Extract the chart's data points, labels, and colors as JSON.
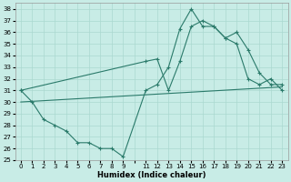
{
  "xlabel": "Humidex (Indice chaleur)",
  "background_color": "#c8ece6",
  "grid_color": "#aad8d0",
  "line_color": "#2a7a6a",
  "ylim": [
    25,
    38.5
  ],
  "xlim": [
    -0.5,
    23.5
  ],
  "yticks": [
    25,
    26,
    27,
    28,
    29,
    30,
    31,
    32,
    33,
    34,
    35,
    36,
    37,
    38
  ],
  "xtick_labels": [
    "0",
    "1",
    "2",
    "3",
    "4",
    "5",
    "6",
    "7",
    "8",
    "9",
    "",
    "11",
    "12",
    "13",
    "14",
    "15",
    "16",
    "17",
    "18",
    "19",
    "20",
    "21",
    "22",
    "23"
  ],
  "xtick_positions": [
    0,
    1,
    2,
    3,
    4,
    5,
    6,
    7,
    8,
    9,
    10,
    11,
    12,
    13,
    14,
    15,
    16,
    17,
    18,
    19,
    20,
    21,
    22,
    23
  ],
  "series1_x": [
    0,
    1,
    2,
    3,
    4,
    5,
    6,
    7,
    8,
    9,
    11,
    12,
    13,
    14,
    15,
    16,
    17,
    18,
    19,
    20,
    21,
    22,
    23
  ],
  "series1_y": [
    31,
    30,
    28.5,
    28,
    27.5,
    26.5,
    26.5,
    26,
    26,
    25.3,
    31,
    31.5,
    33,
    36.3,
    38,
    36.5,
    36.5,
    35.5,
    35,
    32,
    31.5,
    32,
    31
  ],
  "series2_x": [
    0,
    11,
    12,
    13,
    14,
    15,
    16,
    17,
    18,
    19,
    20,
    21,
    22,
    23
  ],
  "series2_y": [
    31,
    33.5,
    33.7,
    31,
    33.5,
    36.5,
    37,
    36.5,
    35.5,
    36,
    34.5,
    32.5,
    31.5,
    31.5
  ],
  "series3_x": [
    0,
    23
  ],
  "series3_y": [
    30,
    31.3
  ],
  "marker": "+"
}
